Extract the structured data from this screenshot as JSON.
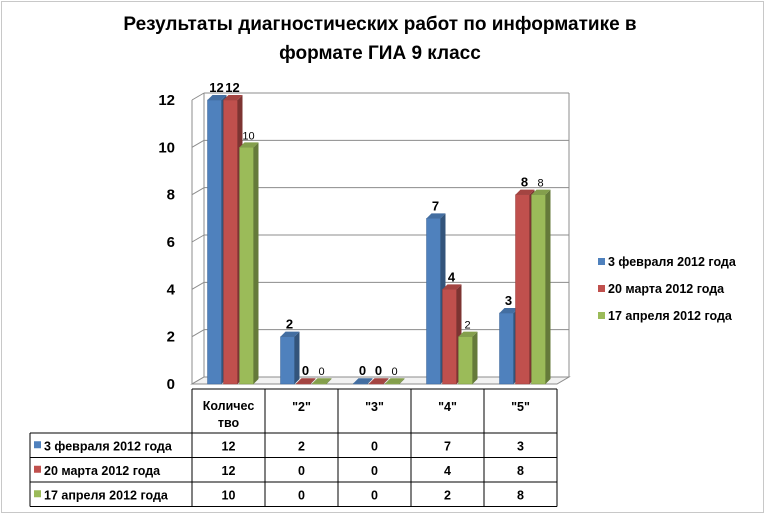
{
  "chart_data": {
    "type": "bar",
    "title": "Результаты диагностических работ по информатике в формате ГИА 9 класс",
    "title_lines": [
      "Результаты диагностических работ по информатике в",
      "формате ГИА 9 класс"
    ],
    "categories": [
      "Количество",
      "\"2\"",
      "\"3\"",
      "\"4\"",
      "\"5\""
    ],
    "category_lines": [
      [
        "Количес",
        "тво"
      ],
      [
        "\"2\""
      ],
      [
        "\"3\""
      ],
      [
        "\"4\""
      ],
      [
        "\"5\""
      ]
    ],
    "series": [
      {
        "name": "3 февраля 2012 года",
        "values": [
          12,
          2,
          0,
          7,
          3
        ],
        "color": "#4F81BD",
        "label_style": "bold"
      },
      {
        "name": "20 марта 2012 года",
        "values": [
          12,
          0,
          0,
          4,
          8
        ],
        "color": "#C0504D",
        "label_style": "bold"
      },
      {
        "name": "17 апреля 2012 года",
        "values": [
          10,
          0,
          0,
          2,
          8
        ],
        "color": "#9BBB59",
        "label_style": "normal"
      }
    ],
    "ylim": [
      0,
      12
    ],
    "yticks": [
      0,
      2,
      4,
      6,
      8,
      10,
      12
    ],
    "grid": true,
    "legend": "right",
    "data_table": true,
    "xlabel": "",
    "ylabel": ""
  }
}
